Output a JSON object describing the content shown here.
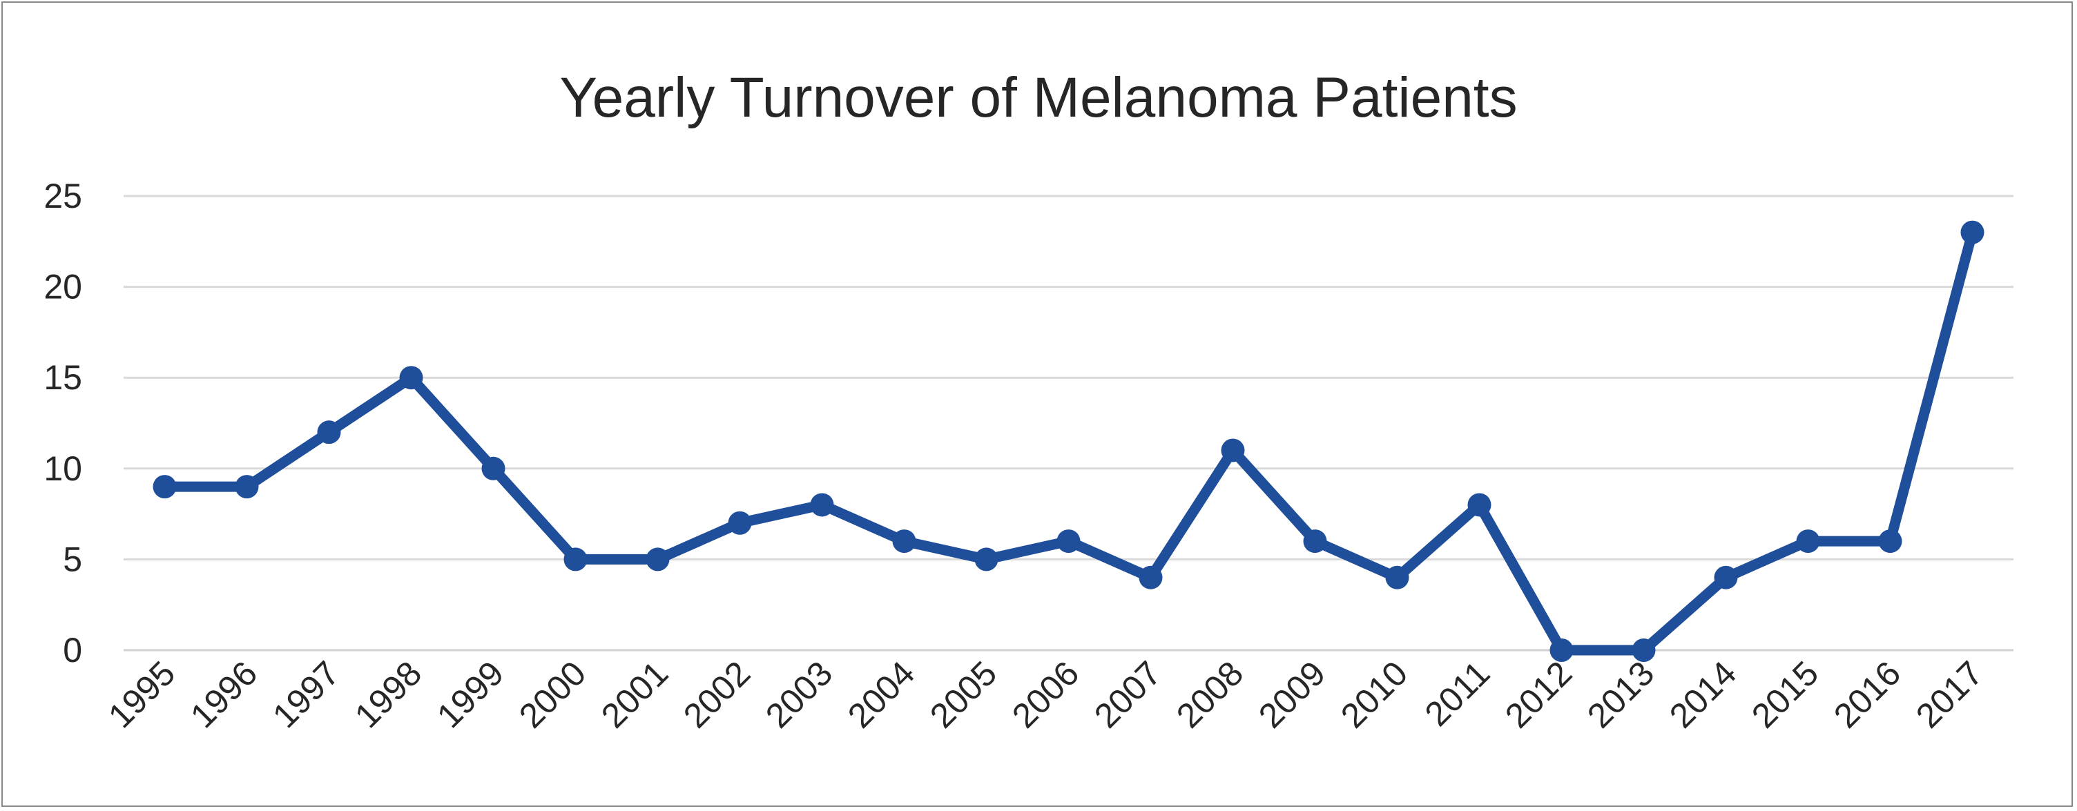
{
  "chart_data": {
    "type": "line",
    "title": "Yearly Turnover of Melanoma Patients",
    "xlabel": "",
    "ylabel": "",
    "x": [
      "1995",
      "1996",
      "1997",
      "1998",
      "1999",
      "2000",
      "2001",
      "2002",
      "2003",
      "2004",
      "2005",
      "2006",
      "2007",
      "2008",
      "2009",
      "2010",
      "2011",
      "2012",
      "2013",
      "2014",
      "2015",
      "2016",
      "2017"
    ],
    "series": [
      {
        "values": [
          9,
          9,
          12,
          15,
          10,
          5,
          5,
          7,
          8,
          6,
          5,
          6,
          4,
          11,
          6,
          4,
          8,
          0,
          0,
          4,
          6,
          6,
          23
        ]
      }
    ],
    "y_ticks": [
      "0",
      "5",
      "10",
      "15",
      "20",
      "25"
    ],
    "ylim": [
      0,
      25
    ],
    "grid": true,
    "legend": "none",
    "colors": {
      "line": "#1f4e9a",
      "grid": "#d9d9d9",
      "text": "#262626"
    }
  }
}
